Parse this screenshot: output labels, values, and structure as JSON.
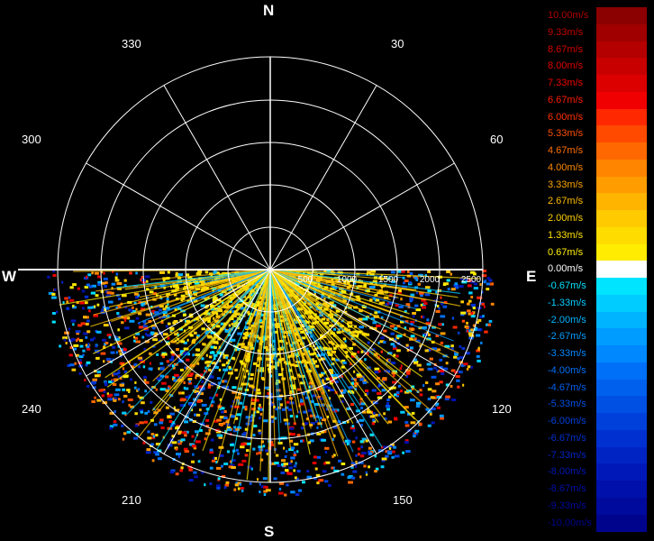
{
  "compass": {
    "north": "N",
    "south": "S",
    "east": "E",
    "west": "W"
  },
  "bearings": [
    "30",
    "60",
    "120",
    "150",
    "210",
    "240",
    "300",
    "330"
  ],
  "range_labels": [
    "500",
    "1000",
    "1500",
    "2000",
    "2500"
  ],
  "legend": [
    {
      "label": "10.00m/s",
      "color": "#8b0000",
      "text_color": "#b00000"
    },
    {
      "label": "9.33m/s",
      "color": "#a00000",
      "text_color": "#c40000"
    },
    {
      "label": "8.67m/s",
      "color": "#b40000",
      "text_color": "#d40000"
    },
    {
      "label": "8.00m/s",
      "color": "#c80000",
      "text_color": "#e00000"
    },
    {
      "label": "7.33m/s",
      "color": "#dc0000",
      "text_color": "#ee0000"
    },
    {
      "label": "6.67m/s",
      "color": "#f00000",
      "text_color": "#ff1a00"
    },
    {
      "label": "6.00m/s",
      "color": "#ff2800",
      "text_color": "#ff3000"
    },
    {
      "label": "5.33m/s",
      "color": "#ff4a00",
      "text_color": "#ff4f00"
    },
    {
      "label": "4.67m/s",
      "color": "#ff6800",
      "text_color": "#ff6e00"
    },
    {
      "label": "4.00m/s",
      "color": "#ff8400",
      "text_color": "#ff8a00"
    },
    {
      "label": "3.33m/s",
      "color": "#ff9c00",
      "text_color": "#ffa400"
    },
    {
      "label": "2.67m/s",
      "color": "#ffb400",
      "text_color": "#ffbc00"
    },
    {
      "label": "2.00m/s",
      "color": "#ffca00",
      "text_color": "#ffd000"
    },
    {
      "label": "1.33m/s",
      "color": "#ffdc00",
      "text_color": "#ffe000"
    },
    {
      "label": "0.67m/s",
      "color": "#ffec00",
      "text_color": "#fff000"
    },
    {
      "label": "0.00m/s",
      "color": "#ffffff",
      "text_color": "#ffffff"
    },
    {
      "label": "-0.67m/s",
      "color": "#00e4ff",
      "text_color": "#00e4ff"
    },
    {
      "label": "-1.33m/s",
      "color": "#00ccff",
      "text_color": "#00ccff"
    },
    {
      "label": "-2.00m/s",
      "color": "#00b4ff",
      "text_color": "#00b4ff"
    },
    {
      "label": "-2.67m/s",
      "color": "#009cff",
      "text_color": "#009cff"
    },
    {
      "label": "-3.33m/s",
      "color": "#0088ff",
      "text_color": "#0088ff"
    },
    {
      "label": "-4.00m/s",
      "color": "#0070f8",
      "text_color": "#0070f8"
    },
    {
      "label": "-4.67m/s",
      "color": "#0060ee",
      "text_color": "#0060ee"
    },
    {
      "label": "-5.33m/s",
      "color": "#0050e4",
      "text_color": "#0050e4"
    },
    {
      "label": "-6.00m/s",
      "color": "#0040da",
      "text_color": "#0040da"
    },
    {
      "label": "-6.67m/s",
      "color": "#0030d0",
      "text_color": "#0030d0"
    },
    {
      "label": "-7.33m/s",
      "color": "#0024c4",
      "text_color": "#0024c4"
    },
    {
      "label": "-8.00m/s",
      "color": "#0018b8",
      "text_color": "#0018b8"
    },
    {
      "label": "-8.67m/s",
      "color": "#0010aa",
      "text_color": "#0010aa"
    },
    {
      "label": "-9.33m/s",
      "color": "#000a9c",
      "text_color": "#000a9c"
    },
    {
      "label": "-10.00m/s",
      "color": "#00048c",
      "text_color": "#00048c"
    }
  ],
  "colors": {
    "background": "#000000",
    "grid": "#ffffff"
  }
}
